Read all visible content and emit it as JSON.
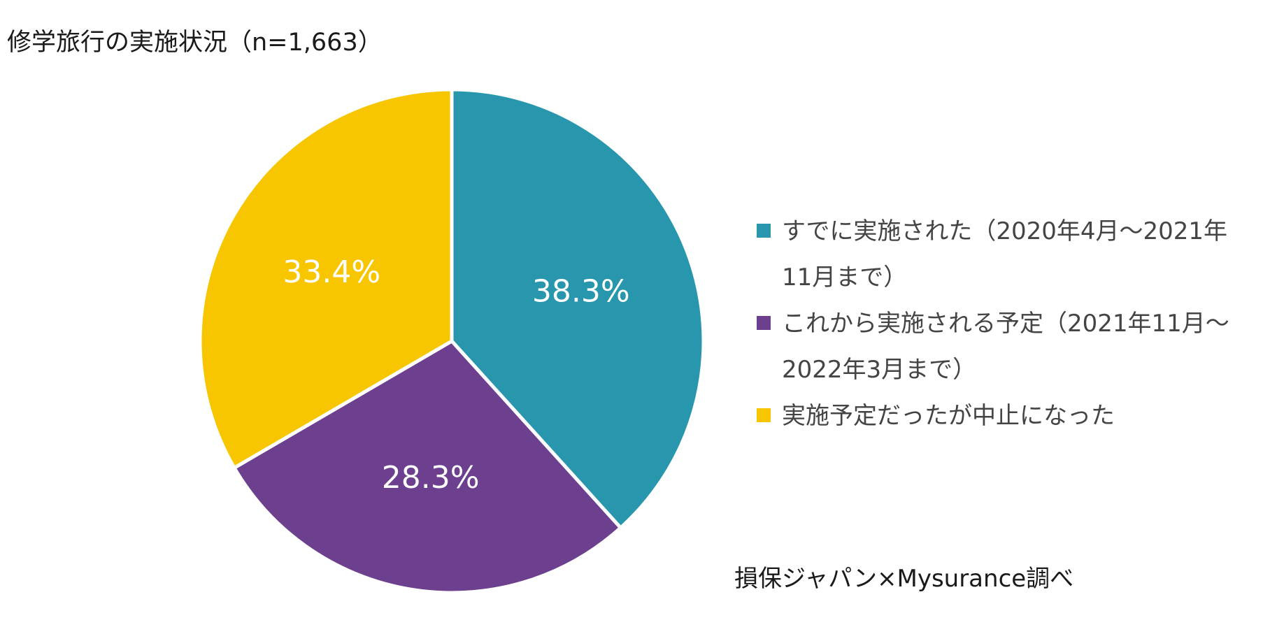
{
  "chart_data": {
    "type": "pie",
    "title": "修学旅行の実施状況（n=1,663）",
    "slices": [
      {
        "label_lines": [
          "すでに実施された（2020年4月～2021年",
          "11月まで）"
        ],
        "value": 38.3,
        "value_label": "38.3%",
        "color": "#2897ad"
      },
      {
        "label_lines": [
          "これから実施される予定（2021年11月～",
          "2022年3月まで）"
        ],
        "value": 28.3,
        "value_label": "28.3%",
        "color": "#6d3f8f"
      },
      {
        "label_lines": [
          "実施予定だったが中止になった"
        ],
        "value": 33.4,
        "value_label": "33.4%",
        "color": "#f8c600"
      }
    ],
    "legend_position": "right",
    "start_angle_deg": 0,
    "direction": "clockwise"
  },
  "source": "損保ジャパン×Mysurance調べ"
}
